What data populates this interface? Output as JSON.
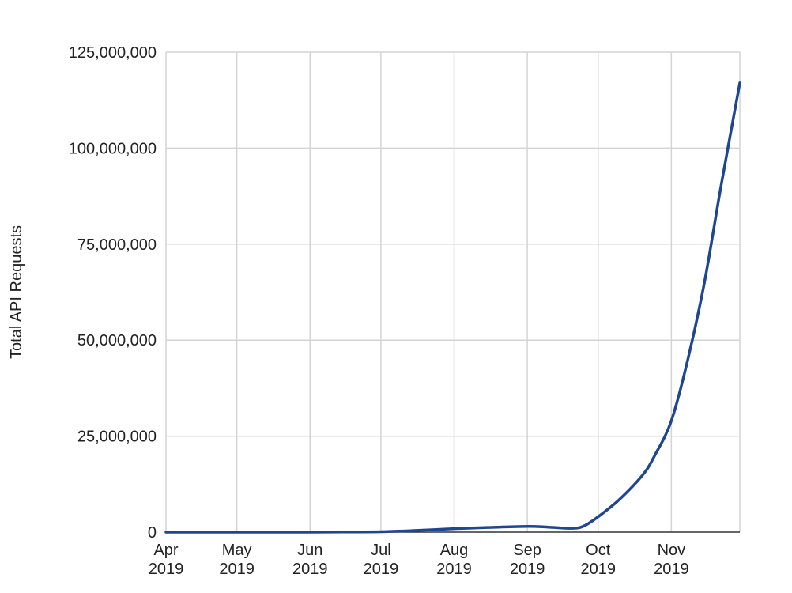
{
  "chart_data": {
    "type": "line",
    "title": "",
    "xlabel": "",
    "ylabel": "Total API Requests",
    "x_ticks": [
      {
        "month": "Apr",
        "year": "2019"
      },
      {
        "month": "May",
        "year": "2019"
      },
      {
        "month": "Jun",
        "year": "2019"
      },
      {
        "month": "Jul",
        "year": "2019"
      },
      {
        "month": "Aug",
        "year": "2019"
      },
      {
        "month": "Sep",
        "year": "2019"
      },
      {
        "month": "Oct",
        "year": "2019"
      },
      {
        "month": "Nov",
        "year": "2019"
      }
    ],
    "xlim": [
      "2019-04-01",
      "2019-11-30"
    ],
    "y_ticks": [
      "0",
      "25,000,000",
      "50,000,000",
      "75,000,000",
      "100,000,000",
      "125,000,000"
    ],
    "ylim": [
      0,
      125000000
    ],
    "grid": true,
    "legend": "none",
    "series": [
      {
        "color": "#1f4690",
        "x": [
          "2019-04-01",
          "2019-04-15",
          "2019-05-01",
          "2019-05-15",
          "2019-06-01",
          "2019-06-15",
          "2019-07-01",
          "2019-07-15",
          "2019-08-01",
          "2019-08-15",
          "2019-09-01",
          "2019-09-10",
          "2019-09-20",
          "2019-09-25",
          "2019-10-01",
          "2019-10-10",
          "2019-10-20",
          "2019-10-25",
          "2019-11-01",
          "2019-11-08",
          "2019-11-15",
          "2019-11-22",
          "2019-11-30"
        ],
        "y": [
          0,
          0,
          0,
          0,
          0,
          50000,
          100000,
          400000,
          900000,
          1200000,
          1500000,
          1300000,
          1000000,
          1600000,
          4000000,
          8500000,
          15000000,
          20000000,
          29000000,
          45000000,
          65000000,
          90000000,
          117000000
        ]
      }
    ]
  }
}
